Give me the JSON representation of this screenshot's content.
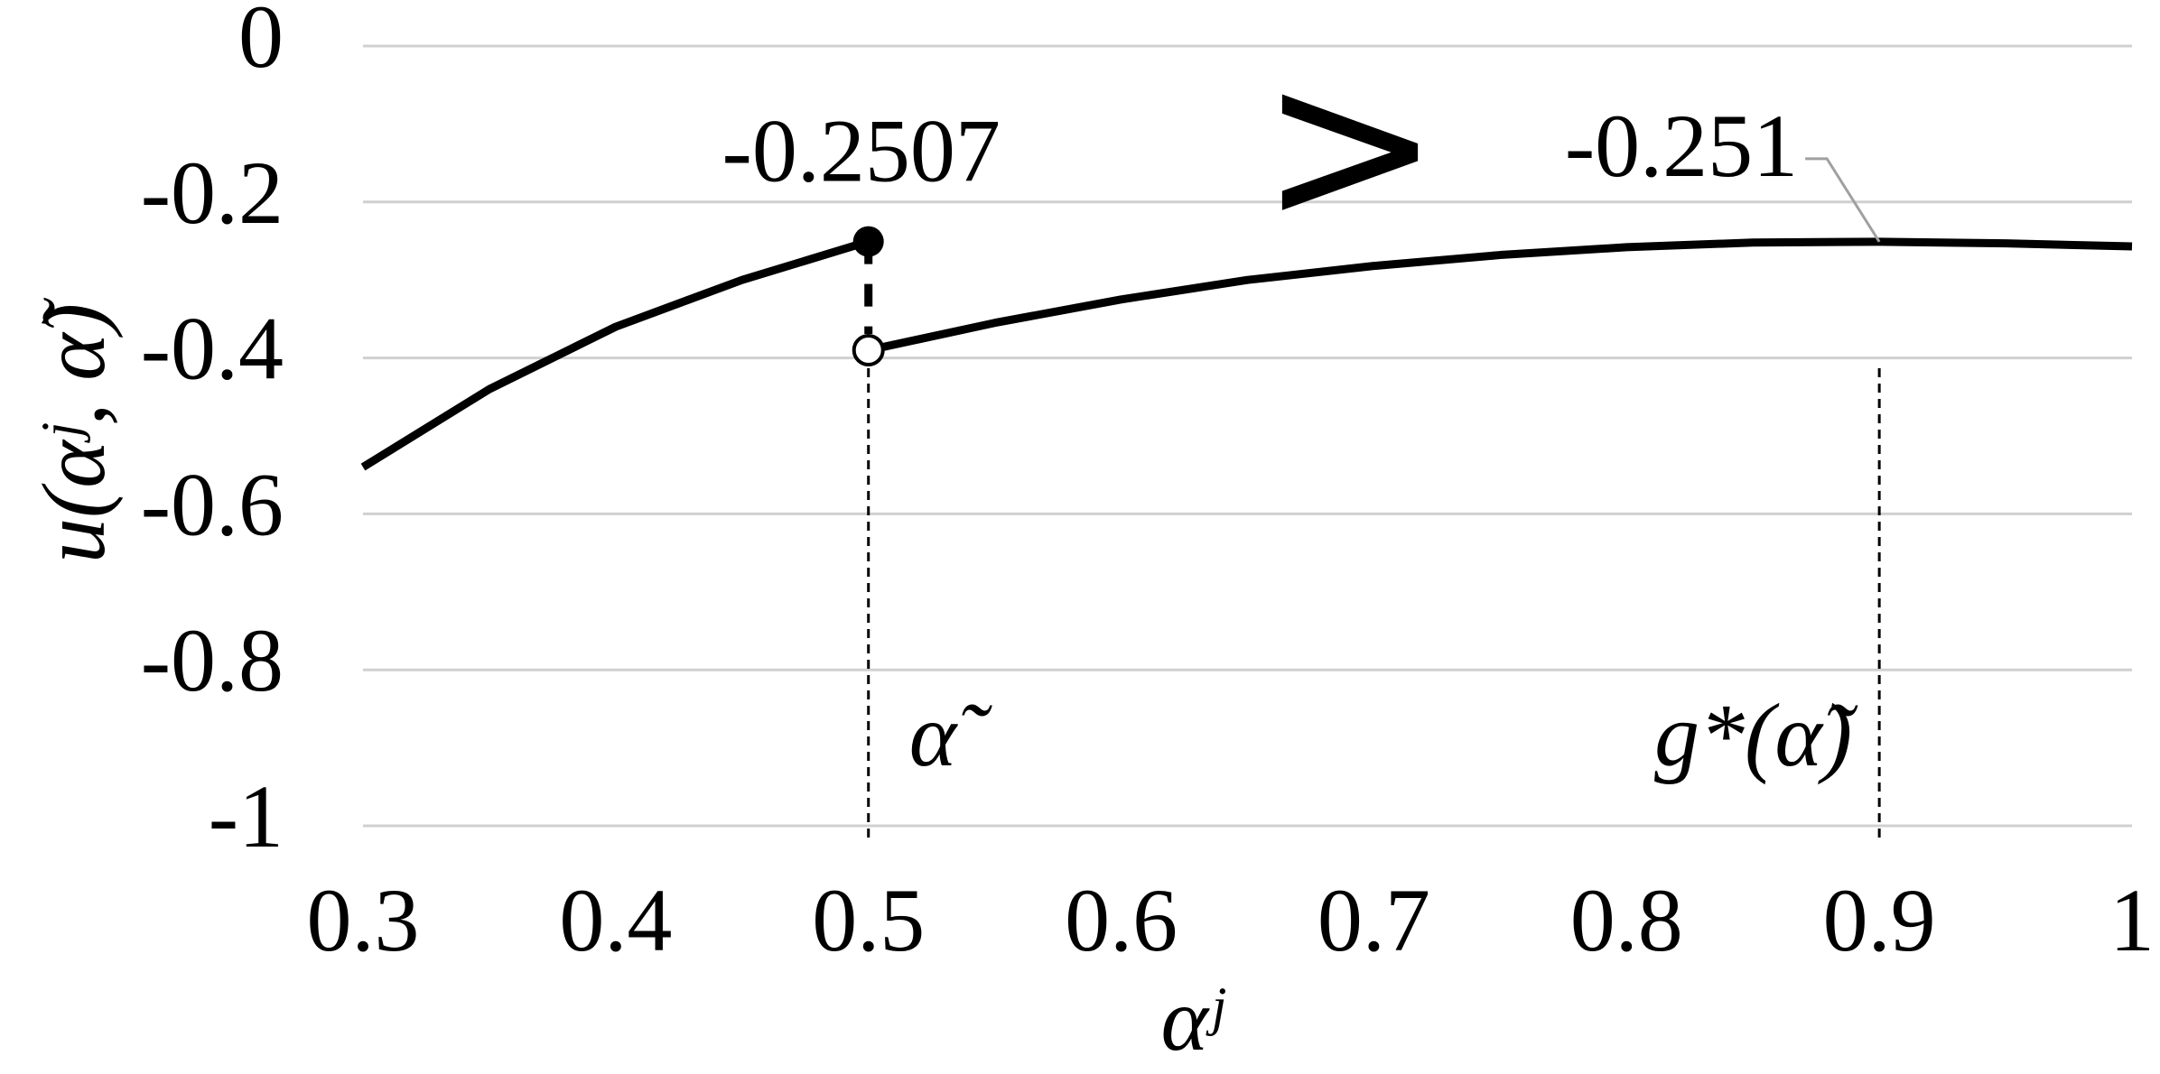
{
  "chart_data": {
    "type": "line",
    "y_label": "u(αʲ, α̃)",
    "x_label": "αʲ",
    "x": [
      0.3,
      0.35,
      0.4,
      0.45,
      0.5,
      null,
      0.5,
      0.55,
      0.6,
      0.65,
      0.7,
      0.75,
      0.8,
      0.85,
      0.9,
      0.95,
      1
    ],
    "series": [
      {
        "color": "#000000",
        "values": [
          -0.54,
          -0.44,
          -0.36,
          -0.3,
          -0.2507,
          null,
          -0.39,
          -0.355,
          -0.325,
          -0.3,
          -0.282,
          -0.268,
          -0.258,
          -0.252,
          -0.251,
          -0.253,
          -0.257
        ]
      }
    ],
    "xlim": [
      0.3,
      1
    ],
    "ylim": [
      -1,
      0
    ],
    "xticks": [
      0.3,
      0.4,
      0.5,
      0.6,
      0.7,
      0.8,
      0.9,
      1
    ],
    "yticks": [
      0,
      -0.2,
      -0.4,
      -0.6,
      -0.8,
      -1
    ],
    "grid": true,
    "vlines": [
      {
        "x": 0.5,
        "label": "α̃"
      },
      {
        "x": 0.9,
        "label": "g*(α̃)"
      }
    ],
    "annotation": ">"
  }
}
